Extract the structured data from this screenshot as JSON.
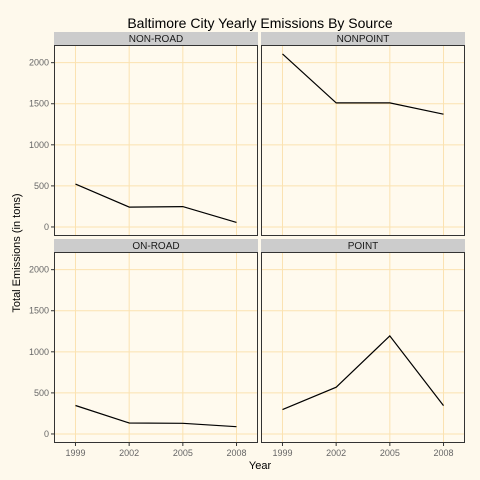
{
  "chart_data": {
    "type": "line",
    "title": "Baltimore City Yearly Emissions By Source",
    "xlabel": "Year",
    "ylabel": "Total Emissions (in tons)",
    "x": [
      1999,
      2002,
      2005,
      2008
    ],
    "xticks": [
      "1999",
      "2002",
      "2005",
      "2008"
    ],
    "yticks": [
      "0",
      "500",
      "1000",
      "1500",
      "2000"
    ],
    "ylim": [
      0,
      2200
    ],
    "grid": true,
    "facets": [
      {
        "name": "NON-ROAD",
        "values": [
          522,
          242,
          248,
          55
        ]
      },
      {
        "name": "NONPOINT",
        "values": [
          2107,
          1510,
          1510,
          1373
        ]
      },
      {
        "name": "ON-ROAD",
        "values": [
          347,
          134,
          130,
          88
        ]
      },
      {
        "name": "POINT",
        "values": [
          296,
          569,
          1194,
          345
        ]
      }
    ],
    "colors": {
      "background": "#fef9ec",
      "panel": "#fffaee",
      "grid": "#fbe2b0",
      "strip": "#cccccc",
      "line": "#000000",
      "tick_text": "#666666"
    }
  }
}
